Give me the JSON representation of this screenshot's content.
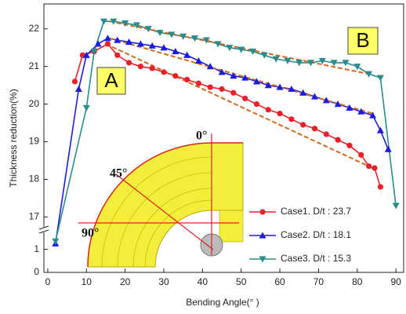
{
  "chart_data": {
    "type": "line",
    "xlabel": "Bending Angle(°  )",
    "ylabel": "Thickness reduction(%)",
    "xlim": [
      -1,
      92
    ],
    "xticks": [
      0,
      10,
      20,
      30,
      40,
      50,
      60,
      70,
      80,
      90
    ],
    "ylim": [
      0,
      22.6
    ],
    "ybreak": [
      1.6,
      16.8
    ],
    "yticks": [
      0,
      1,
      17,
      18,
      19,
      20,
      21,
      22
    ],
    "annotations": [
      "A",
      "B"
    ],
    "inset_labels": [
      "0°",
      "45°",
      "90°"
    ],
    "series": [
      {
        "name": "Case1. D/t : 23.7",
        "color": "#e8202a",
        "marker": "circle",
        "x": [
          7,
          9,
          12,
          15.5,
          18,
          21,
          24,
          27,
          30,
          33,
          36,
          39,
          42,
          45,
          48,
          51,
          54,
          57,
          60,
          63,
          66,
          69,
          72,
          75,
          78,
          81,
          83,
          84.5,
          86
        ],
        "values": [
          20.6,
          21.3,
          21.4,
          21.6,
          21.3,
          21.1,
          21.0,
          20.95,
          20.85,
          20.75,
          20.65,
          20.55,
          20.45,
          20.4,
          20.3,
          20.15,
          20.0,
          19.85,
          19.75,
          19.6,
          19.45,
          19.35,
          19.2,
          19.05,
          18.9,
          18.65,
          18.35,
          18.3,
          17.8
        ]
      },
      {
        "name": "Case2. D/t : 18.1",
        "color": "#1c1ce0",
        "marker": "triangle-up",
        "x": [
          2,
          8,
          10,
          13,
          15.5,
          18,
          21,
          24,
          27,
          30,
          33,
          36,
          39,
          42,
          45,
          48,
          51,
          54,
          57,
          60,
          63,
          66,
          69,
          72,
          75,
          78,
          81,
          84,
          86,
          88
        ],
        "values": [
          1.25,
          20.4,
          21.3,
          21.6,
          21.75,
          21.7,
          21.65,
          21.6,
          21.55,
          21.5,
          21.4,
          21.3,
          21.15,
          21.0,
          20.85,
          20.75,
          20.7,
          20.6,
          20.5,
          20.45,
          20.4,
          20.3,
          20.2,
          20.1,
          20.0,
          19.9,
          19.8,
          19.7,
          19.3,
          18.8
        ]
      },
      {
        "name": "Case3. D/t : 15.3",
        "color": "#2a8c8c",
        "marker": "triangle-down",
        "x": [
          2,
          10,
          12,
          14.5,
          17,
          20,
          23,
          26,
          29,
          32,
          35,
          38,
          41,
          44,
          47,
          50,
          53,
          56,
          59,
          62,
          65,
          68,
          71,
          74,
          77,
          80,
          83,
          86,
          90
        ],
        "values": [
          1.35,
          19.9,
          21.4,
          22.2,
          22.2,
          22.15,
          22.1,
          22.0,
          21.9,
          21.85,
          21.8,
          21.75,
          21.7,
          21.6,
          21.5,
          21.45,
          21.4,
          21.3,
          21.2,
          21.15,
          21.1,
          21.1,
          21.15,
          21.1,
          21.1,
          21.0,
          20.8,
          20.7,
          17.3
        ]
      }
    ],
    "trend_lines": [
      {
        "color": "#d2691e",
        "x": [
          15,
          84
        ],
        "values": [
          21.6,
          18.3
        ]
      },
      {
        "color": "#d2691e",
        "x": [
          16,
          84
        ],
        "values": [
          21.75,
          19.75
        ]
      },
      {
        "color": "#d2691e",
        "x": [
          16,
          83
        ],
        "values": [
          22.2,
          20.8
        ]
      }
    ]
  }
}
